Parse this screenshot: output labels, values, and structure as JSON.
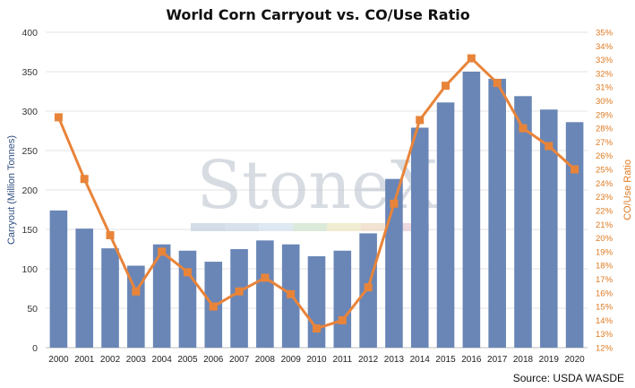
{
  "chart_data": {
    "type": "bar",
    "title": "World Corn Carryout vs. CO/Use Ratio",
    "categories": [
      "2000",
      "2001",
      "2002",
      "2003",
      "2004",
      "2005",
      "2006",
      "2007",
      "2008",
      "2009",
      "2010",
      "2011",
      "2012",
      "2013",
      "2014",
      "2015",
      "2016",
      "2017",
      "2018",
      "2019",
      "2020"
    ],
    "series": [
      {
        "name": "",
        "type": "bar",
        "axis": "left",
        "color": "#6a86b6",
        "values": [
          174,
          151,
          126,
          104,
          131,
          123,
          109,
          125,
          136,
          131,
          116,
          123,
          145,
          214,
          279,
          311,
          350,
          341,
          319,
          302,
          286
        ]
      },
      {
        "name": "",
        "type": "line",
        "axis": "right",
        "color": "#e8843a",
        "values": [
          28.8,
          24.3,
          20.2,
          16.1,
          19.0,
          17.5,
          15.0,
          16.1,
          17.1,
          15.9,
          13.4,
          14.0,
          16.4,
          22.5,
          28.6,
          31.1,
          33.1,
          31.3,
          28.0,
          26.7,
          25.0
        ]
      }
    ],
    "ylabel": "Carryout (Million Tonnes)",
    "ylim": [
      0,
      400
    ],
    "yticks": [
      0,
      50,
      100,
      150,
      200,
      250,
      300,
      350,
      400
    ],
    "y2label": "CO/Use Ratio",
    "y2lim": [
      12,
      35
    ],
    "y2ticks": [
      "12%",
      "13%",
      "14%",
      "15%",
      "16%",
      "17%",
      "18%",
      "19%",
      "20%",
      "21%",
      "22%",
      "23%",
      "24%",
      "25%",
      "26%",
      "27%",
      "28%",
      "29%",
      "30%",
      "31%",
      "32%",
      "33%",
      "34%",
      "35%"
    ],
    "grid": true,
    "legend": "none"
  },
  "source": "Source: USDA WASDE",
  "watermark": "StoneX"
}
